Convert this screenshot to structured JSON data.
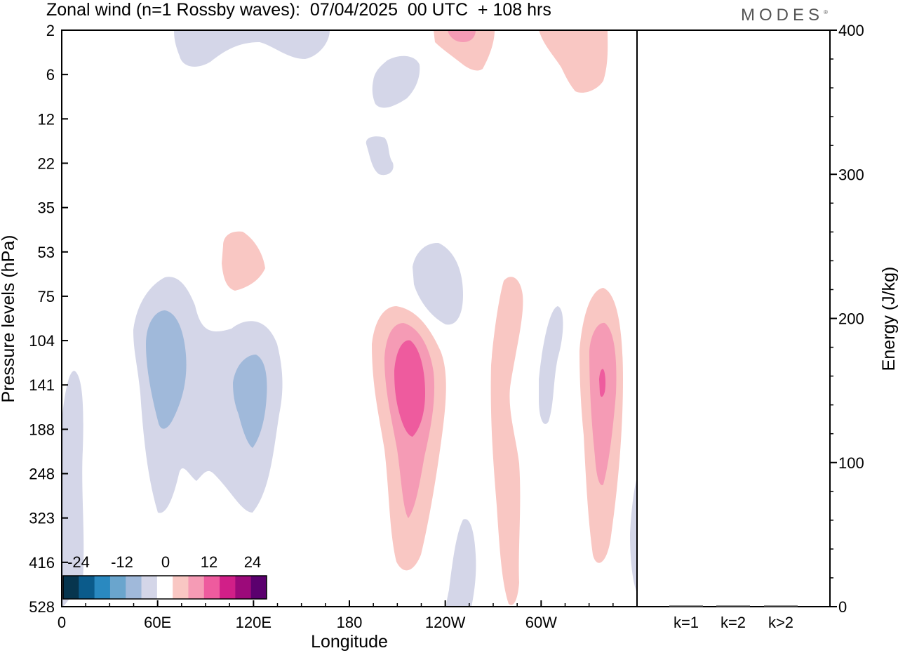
{
  "header": {
    "title": "Zonal wind (n=1 Rossby waves):  07/04/2025  00 UTC  + 108 hrs",
    "brand": "MODES",
    "brand_mark": "®"
  },
  "chart_data": [
    {
      "type": "heatmap",
      "title": "Zonal wind (n=1 Rossby waves):  07/04/2025  00 UTC  + 108 hrs",
      "xlabel": "Longitude",
      "ylabel": "Pressure levels (hPa)",
      "x_ticks": [
        "0",
        "60E",
        "120E",
        "180",
        "120W",
        "60W"
      ],
      "x_tick_values": [
        0,
        60,
        120,
        180,
        240,
        300
      ],
      "xlim": [
        0,
        360
      ],
      "y_ticks": [
        "2",
        "6",
        "12",
        "22",
        "35",
        "53",
        "75",
        "104",
        "141",
        "188",
        "248",
        "323",
        "416",
        "528"
      ],
      "y_axis": "pressure levels (reversed)",
      "colorbar": {
        "tick_labels": [
          "-24",
          "-12",
          "0",
          "12",
          "24"
        ],
        "tick_values": [
          -24,
          -12,
          0,
          12,
          24
        ],
        "levels": [
          -30,
          -27,
          -24,
          -21,
          -18,
          -15,
          -12,
          -9,
          -6,
          -3,
          3,
          6,
          9,
          12,
          15,
          18,
          21,
          24,
          27,
          30
        ],
        "colors": [
          "#07354e",
          "#0b5b8b",
          "#2a89c0",
          "#6aa5cd",
          "#a0b9da",
          "#d4d6e8",
          "#ffffff",
          "#f9c7c3",
          "#f59bb5",
          "#ee5b9e",
          "#d11f88",
          "#9c0a7a",
          "#5b006e"
        ]
      },
      "features": [
        {
          "region": "2-5 hPa, 50E-85E",
          "value_band": [
            -6,
            -3
          ]
        },
        {
          "region": "2-12 hPa, 195W-155W",
          "value_band": [
            -6,
            -3
          ]
        },
        {
          "region": "2-6 hPa, 110W-95W",
          "value_band": [
            3,
            9
          ]
        },
        {
          "region": "2-9 hPa, 45W-30W",
          "value_band": [
            3,
            6
          ]
        },
        {
          "region": "53-75 hPa, 105E",
          "value_band": [
            3,
            6
          ]
        },
        {
          "region": "75-323 hPa, 50E-140E",
          "value_band": [
            -9,
            -3
          ]
        },
        {
          "region": "104-416 hPa, 150W-105W",
          "value_band": [
            3,
            15
          ]
        },
        {
          "region": "53-104 hPa, 125W",
          "value_band": [
            -6,
            -3
          ]
        },
        {
          "region": "75-528 hPa, 80W",
          "value_band": [
            3,
            6
          ]
        },
        {
          "region": "75-416 hPa, 25W",
          "value_band": [
            3,
            15
          ]
        }
      ]
    },
    {
      "type": "bar",
      "ylabel": "Energy (J/kg)",
      "categories": [
        "k=1",
        "k=2",
        "k>2"
      ],
      "values": [
        0.3,
        0.3,
        0.3
      ],
      "ylim": [
        0,
        400
      ],
      "y_ticks": [
        0,
        100,
        200,
        300,
        400
      ]
    }
  ]
}
